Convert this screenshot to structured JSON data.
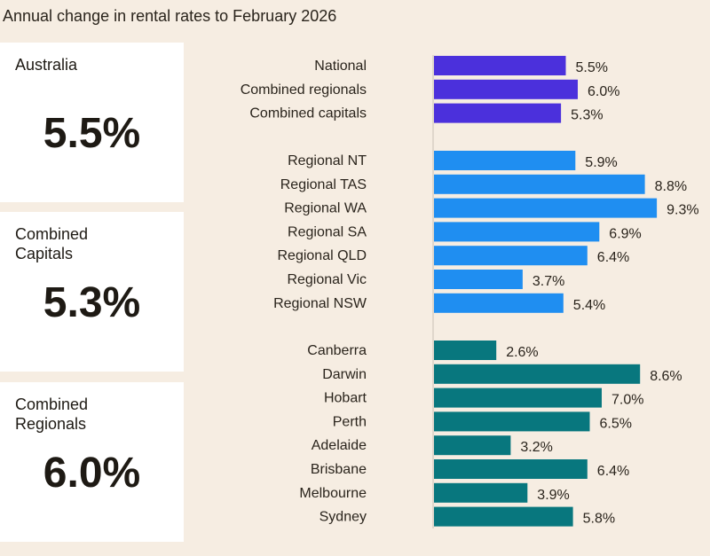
{
  "title": "Annual change in rental rates to February 2026",
  "cards": [
    {
      "label": "Australia",
      "value": "5.5%"
    },
    {
      "label": "Combined Capitals",
      "value": "5.3%"
    },
    {
      "label": "Combined Regionals",
      "value": "6.0%"
    }
  ],
  "chart_data": {
    "type": "bar",
    "orientation": "horizontal",
    "title": "Annual change in rental rates to February 2026",
    "unit": "%",
    "groups": [
      {
        "color": "#4b30dc",
        "categories": [
          "National",
          "Combined regionals",
          "Combined capitals"
        ],
        "values": [
          5.5,
          6.0,
          5.3
        ]
      },
      {
        "color": "#1f8ef1",
        "categories": [
          "Regional NT",
          "Regional TAS",
          "Regional WA",
          "Regional SA",
          "Regional QLD",
          "Regional Vic",
          "Regional NSW"
        ],
        "values": [
          5.9,
          8.8,
          9.3,
          6.9,
          6.4,
          3.7,
          5.4
        ]
      },
      {
        "color": "#08777e",
        "categories": [
          "Canberra",
          "Darwin",
          "Hobart",
          "Perth",
          "Adelaide",
          "Brisbane",
          "Melbourne",
          "Sydney"
        ],
        "values": [
          2.6,
          8.6,
          7.0,
          6.5,
          3.2,
          6.4,
          3.9,
          5.8
        ]
      }
    ],
    "grid": false
  }
}
